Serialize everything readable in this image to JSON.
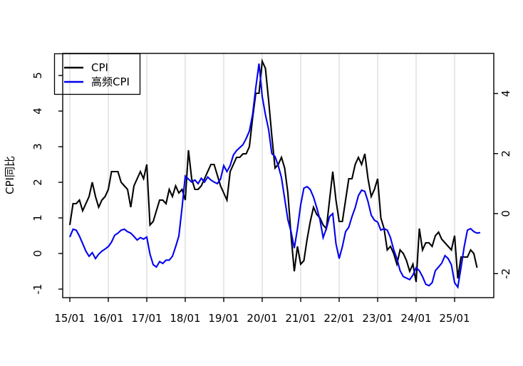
{
  "chart_data": {
    "type": "line",
    "title": "",
    "ylabel_left": "CPI同比",
    "x_start": "2015-01",
    "frequency": "monthly",
    "grid": "vertical-yearly-gridlines",
    "x_tick_labels": [
      "15/01",
      "16/01",
      "17/01",
      "18/01",
      "19/01",
      "20/01",
      "21/01",
      "22/01",
      "23/01",
      "24/01",
      "25/01"
    ],
    "left_axis": {
      "tick_labels": [
        "-1",
        "0",
        "1",
        "2",
        "3",
        "4",
        "5"
      ],
      "ticks": [
        -1,
        0,
        1,
        2,
        3,
        4,
        5
      ],
      "range_at_box": [
        -1.3,
        5.6
      ]
    },
    "right_axis": {
      "tick_labels": [
        "-2",
        "0",
        "2",
        "4"
      ],
      "ticks": [
        -2,
        0,
        2,
        4
      ],
      "range_at_box": [
        -2.85,
        5.33
      ]
    },
    "legend": {
      "position": "topleft",
      "entries": [
        {
          "label": "CPI",
          "color": "#000000"
        },
        {
          "label": "高频CPI",
          "color": "#0000ee"
        }
      ]
    },
    "colors": {
      "cpi_line": "#000000",
      "hf_cpi_line": "#0000ee",
      "gridline": "#d8d8d8",
      "box": "#000000",
      "background": "#ffffff"
    },
    "series": [
      {
        "name": "CPI",
        "axis": "left",
        "color": "#000000",
        "values": [
          0.8,
          1.4,
          1.4,
          1.5,
          1.2,
          1.4,
          1.6,
          2.0,
          1.6,
          1.3,
          1.5,
          1.6,
          1.8,
          2.3,
          2.3,
          2.3,
          2.0,
          1.9,
          1.8,
          1.3,
          1.9,
          2.1,
          2.3,
          2.1,
          2.5,
          0.8,
          0.9,
          1.2,
          1.5,
          1.5,
          1.4,
          1.8,
          1.6,
          1.9,
          1.7,
          1.8,
          1.5,
          2.9,
          2.1,
          1.8,
          1.8,
          1.9,
          2.1,
          2.3,
          2.5,
          2.5,
          2.2,
          1.9,
          1.7,
          1.5,
          2.3,
          2.5,
          2.7,
          2.7,
          2.8,
          2.8,
          3.0,
          3.8,
          4.5,
          4.5,
          5.4,
          5.2,
          4.3,
          3.3,
          2.4,
          2.5,
          2.7,
          2.4,
          1.7,
          0.5,
          -0.5,
          0.2,
          -0.3,
          -0.2,
          0.4,
          0.9,
          1.3,
          1.1,
          1.0,
          0.8,
          0.7,
          1.5,
          2.3,
          1.5,
          0.9,
          0.9,
          1.5,
          2.1,
          2.1,
          2.5,
          2.7,
          2.5,
          2.8,
          2.1,
          1.6,
          1.8,
          2.1,
          1.0,
          0.7,
          0.1,
          0.2,
          0.0,
          -0.3,
          0.1,
          0.0,
          -0.2,
          -0.5,
          -0.3,
          -0.8,
          0.7,
          0.1,
          0.3,
          0.3,
          0.2,
          0.5,
          0.6,
          0.4,
          0.3,
          0.2,
          0.1,
          0.5,
          -0.7,
          -0.1,
          -0.1,
          -0.1,
          0.1,
          0.0,
          -0.4
        ]
      },
      {
        "name": "高频CPI",
        "axis": "right",
        "color": "#0000ee",
        "values": [
          -0.78,
          -0.52,
          -0.55,
          -0.75,
          -1.0,
          -1.25,
          -1.42,
          -1.3,
          -1.5,
          -1.35,
          -1.25,
          -1.18,
          -1.1,
          -0.95,
          -0.72,
          -0.65,
          -0.55,
          -0.52,
          -0.6,
          -0.65,
          -0.76,
          -0.88,
          -0.8,
          -0.85,
          -0.78,
          -1.35,
          -1.7,
          -1.78,
          -1.6,
          -1.66,
          -1.55,
          -1.55,
          -1.42,
          -1.1,
          -0.75,
          0.2,
          1.25,
          1.15,
          1.05,
          1.12,
          1.0,
          1.18,
          1.05,
          1.22,
          1.12,
          1.05,
          1.0,
          1.15,
          1.6,
          1.4,
          1.6,
          1.95,
          2.1,
          2.2,
          2.3,
          2.5,
          2.75,
          3.3,
          4.2,
          5.0,
          3.9,
          3.3,
          2.8,
          2.0,
          1.9,
          1.6,
          1.2,
          0.5,
          -0.2,
          -0.6,
          -1.15,
          -0.5,
          0.3,
          0.85,
          0.9,
          0.8,
          0.55,
          0.2,
          -0.2,
          -0.8,
          -0.5,
          -0.1,
          0.0,
          -1.0,
          -1.5,
          -1.1,
          -0.6,
          -0.45,
          -0.1,
          0.2,
          0.6,
          0.78,
          0.74,
          0.4,
          -0.05,
          -0.22,
          -0.28,
          -0.55,
          -0.5,
          -0.55,
          -0.8,
          -1.2,
          -1.5,
          -1.9,
          -2.1,
          -2.15,
          -2.2,
          -2.05,
          -1.8,
          -1.9,
          -2.1,
          -2.35,
          -2.4,
          -2.3,
          -1.9,
          -1.78,
          -1.65,
          -1.4,
          -1.5,
          -1.7,
          -2.3,
          -2.45,
          -1.8,
          -1.1,
          -0.55,
          -0.5,
          -0.6,
          -0.65,
          -0.63
        ]
      }
    ]
  }
}
